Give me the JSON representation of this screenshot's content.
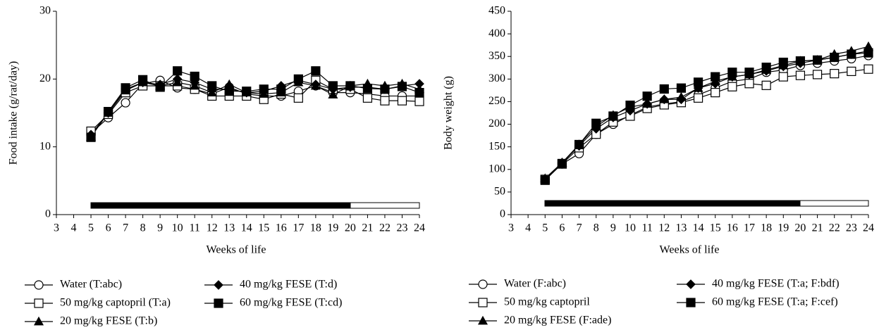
{
  "chart_data": [
    {
      "type": "line",
      "y_label": "Food intake (g/rat/day)",
      "x_label": "Weeks of life",
      "x": [
        5,
        6,
        7,
        8,
        9,
        10,
        11,
        12,
        13,
        14,
        15,
        16,
        17,
        18,
        19,
        20,
        21,
        22,
        23,
        24
      ],
      "xlim": [
        3,
        24
      ],
      "xticks": [
        3,
        4,
        5,
        6,
        7,
        8,
        9,
        10,
        11,
        12,
        13,
        14,
        15,
        16,
        17,
        18,
        19,
        20,
        21,
        22,
        23,
        24
      ],
      "ylim": [
        0,
        30
      ],
      "yticks": [
        0,
        10,
        20,
        30
      ],
      "series": [
        {
          "name": "Water (T:abc)",
          "color": "#000000",
          "marker": "circle-open",
          "values": [
            12,
            14.3,
            16.5,
            19.3,
            19.8,
            18.7,
            18.5,
            17.8,
            18.8,
            17.8,
            17.5,
            17.5,
            18.2,
            19,
            18,
            18,
            17.8,
            17.5,
            17.5,
            17.5
          ]
        },
        {
          "name": "50 mg/kg captopril (T:a)",
          "color": "#000000",
          "marker": "square-open",
          "values": [
            12.3,
            14.8,
            18,
            19,
            19,
            19,
            18.5,
            17.5,
            17.5,
            17.5,
            17,
            17.8,
            17.2,
            19.8,
            18.5,
            18.5,
            17.2,
            16.8,
            16.8,
            16.7
          ]
        },
        {
          "name": "20 mg/kg FESE (T:b)",
          "color": "#000000",
          "marker": "triangle",
          "values": [
            11.5,
            15,
            18.3,
            19.5,
            19,
            19.5,
            19,
            18,
            19.2,
            18,
            17.8,
            18,
            19.5,
            19,
            17.7,
            19,
            19.3,
            19,
            19.3,
            18.5
          ]
        },
        {
          "name": "40 mg/kg FESE (T:d)",
          "color": "#000000",
          "marker": "diamond",
          "values": [
            11.8,
            15,
            18.5,
            19.5,
            19.2,
            20,
            19.5,
            18.5,
            18.5,
            18,
            18.2,
            19,
            19.8,
            19.2,
            18.5,
            18.8,
            18.8,
            18.5,
            19,
            19.3
          ]
        },
        {
          "name": "60 mg/kg FESE (T:cd)",
          "color": "#000000",
          "marker": "square",
          "values": [
            11.4,
            15.2,
            18.7,
            19.9,
            18.8,
            21.2,
            20.4,
            19,
            18.2,
            18.2,
            18.5,
            18.5,
            20,
            21.2,
            19,
            19,
            18.6,
            18.5,
            18.9,
            18
          ]
        }
      ]
    },
    {
      "type": "line",
      "y_label": "Body weight (g)",
      "x_label": "Weeks of life",
      "x": [
        5,
        6,
        7,
        8,
        9,
        10,
        11,
        12,
        13,
        14,
        15,
        16,
        17,
        18,
        19,
        20,
        21,
        22,
        23,
        24
      ],
      "xlim": [
        3,
        24
      ],
      "xticks": [
        3,
        4,
        5,
        6,
        7,
        8,
        9,
        10,
        11,
        12,
        13,
        14,
        15,
        16,
        17,
        18,
        19,
        20,
        21,
        22,
        23,
        24
      ],
      "ylim": [
        0,
        450
      ],
      "yticks": [
        0,
        50,
        100,
        150,
        200,
        250,
        300,
        350,
        400,
        450
      ],
      "series": [
        {
          "name": "Water (F:abc)",
          "color": "#000000",
          "marker": "circle-open",
          "values": [
            78,
            112,
            135,
            178,
            200,
            220,
            238,
            245,
            250,
            265,
            280,
            295,
            300,
            315,
            320,
            330,
            335,
            340,
            345,
            352
          ]
        },
        {
          "name": "50 mg/kg captopril",
          "color": "#000000",
          "marker": "square-open",
          "values": [
            78,
            112,
            148,
            178,
            205,
            218,
            235,
            243,
            248,
            258,
            270,
            283,
            290,
            286,
            305,
            308,
            310,
            312,
            317,
            322
          ]
        },
        {
          "name": "20 mg/kg FESE (F:ade)",
          "color": "#000000",
          "marker": "triangle",
          "values": [
            80,
            115,
            155,
            195,
            220,
            238,
            245,
            255,
            260,
            280,
            295,
            305,
            310,
            320,
            330,
            340,
            342,
            355,
            362,
            372
          ]
        },
        {
          "name": "40 mg/kg FESE (T:a; F:bdf)",
          "color": "#000000",
          "marker": "diamond",
          "values": [
            78,
            115,
            152,
            190,
            215,
            230,
            245,
            255,
            255,
            280,
            290,
            305,
            310,
            318,
            328,
            335,
            342,
            348,
            355,
            362
          ]
        },
        {
          "name": "60 mg/kg FESE (T:a; F:cef)",
          "color": "#000000",
          "marker": "square",
          "values": [
            76,
            113,
            155,
            202,
            218,
            242,
            262,
            278,
            280,
            293,
            305,
            315,
            315,
            326,
            337,
            340,
            342,
            348,
            355,
            358
          ]
        }
      ]
    }
  ]
}
